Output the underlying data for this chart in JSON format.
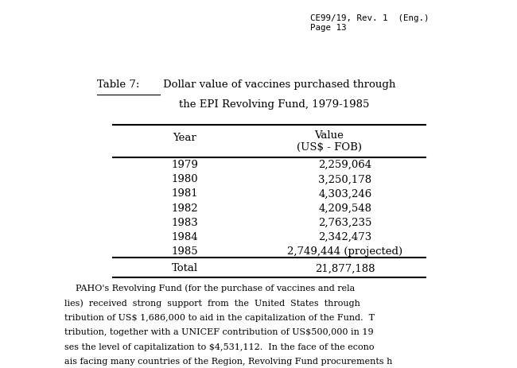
{
  "title_label": "Table 7:",
  "title_text1": "Dollar value of vaccines purchased through",
  "title_text2": "the EPI Revolving Fund, 1979-1985",
  "col_header1": "Year",
  "col_header2a": "Value",
  "col_header2b": "(US$ - FOB)",
  "rows": [
    [
      "1979",
      "2,259,064"
    ],
    [
      "1980",
      "3,250,178"
    ],
    [
      "1981",
      "4,303,246"
    ],
    [
      "1982",
      "4,209,548"
    ],
    [
      "1983",
      "2,763,235"
    ],
    [
      "1984",
      "2,342,473"
    ],
    [
      "1985",
      "2,749,444 (projected)"
    ]
  ],
  "total_row": [
    "Total",
    "21,877,188"
  ],
  "header_top_text1": "CE99/19, Rev. 1  (Eng.)",
  "header_top_text2": "Page 13",
  "footer_lines": [
    "    PAHO's Revolving Fund (for the purchase of vaccines and rela",
    "lies)  received  strong  support  from  the  United  States  through",
    "tribution of US$ 1,686,000 to aid in the capitalization of the Fund.  T",
    "tribution, together with a UNICEF contribution of US$500,000 in 19",
    "ses the level of capitalization to $4,531,112.  In the face of the econo",
    "ais facing many countries of the Region, Revolving Fund procurements h"
  ],
  "bg_color": "#ffffff",
  "text_color": "#000000",
  "lw_thick": 1.5
}
